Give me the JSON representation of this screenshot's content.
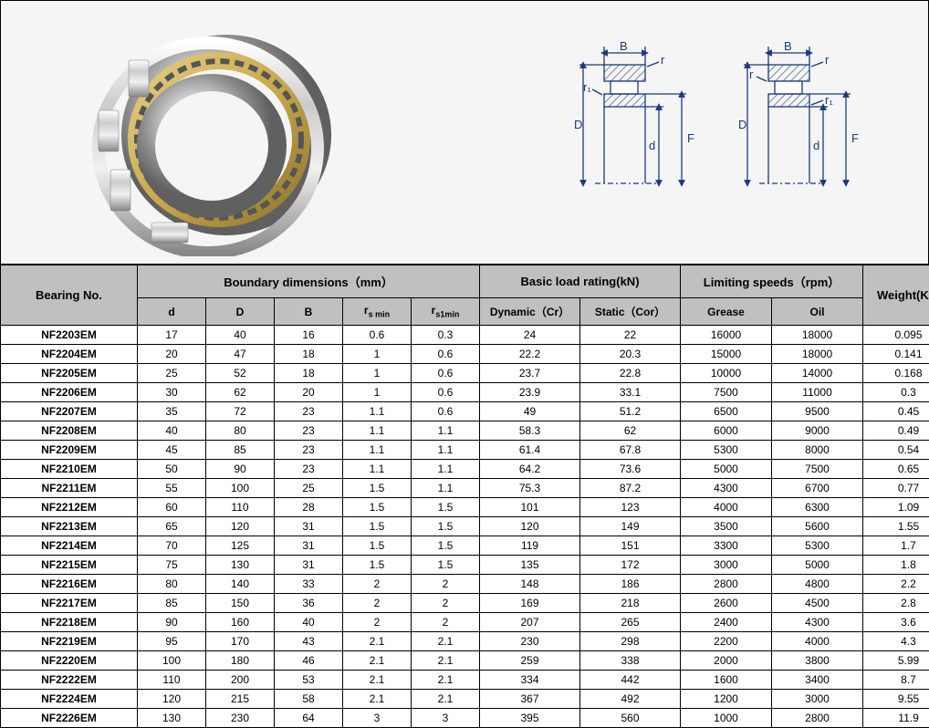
{
  "headers": {
    "bearing_no": "Bearing No.",
    "boundary_dim": "Boundary dimensions（mm）",
    "basic_load": "Basic load rating(kN)",
    "limiting_speeds": "Limiting speeds（rpm）",
    "weight": "Weight(Kg)",
    "d": "d",
    "D_cap": "D",
    "B_cap": "B",
    "rs_min": "r",
    "rs_min_sub": "s min",
    "rs1min": "r",
    "rs1min_sub": "s1min",
    "dynamic": "Dynamic（Cr）",
    "static": "Static（Cor）",
    "grease": "Grease",
    "oil": "Oil"
  },
  "diagram_labels": {
    "B": "B",
    "r": "r",
    "r1": "r₁",
    "D": "D",
    "d": "d",
    "F": "F"
  },
  "table": {
    "columns": [
      "bearing",
      "d",
      "D",
      "B",
      "rs_min",
      "rs1min",
      "dynamic",
      "static",
      "grease",
      "oil",
      "weight"
    ],
    "rows": [
      [
        "NF2203EM",
        "17",
        "40",
        "16",
        "0.6",
        "0.3",
        "24",
        "22",
        "16000",
        "18000",
        "0.095"
      ],
      [
        "NF2204EM",
        "20",
        "47",
        "18",
        "1",
        "0.6",
        "22.2",
        "20.3",
        "15000",
        "18000",
        "0.141"
      ],
      [
        "NF2205EM",
        "25",
        "52",
        "18",
        "1",
        "0.6",
        "23.7",
        "22.8",
        "10000",
        "14000",
        "0.168"
      ],
      [
        "NF2206EM",
        "30",
        "62",
        "20",
        "1",
        "0.6",
        "23.9",
        "33.1",
        "7500",
        "11000",
        "0.3"
      ],
      [
        "NF2207EM",
        "35",
        "72",
        "23",
        "1.1",
        "0.6",
        "49",
        "51.2",
        "6500",
        "9500",
        "0.45"
      ],
      [
        "NF2208EM",
        "40",
        "80",
        "23",
        "1.1",
        "1.1",
        "58.3",
        "62",
        "6000",
        "9000",
        "0.49"
      ],
      [
        "NF2209EM",
        "45",
        "85",
        "23",
        "1.1",
        "1.1",
        "61.4",
        "67.8",
        "5300",
        "8000",
        "0.54"
      ],
      [
        "NF2210EM",
        "50",
        "90",
        "23",
        "1.1",
        "1.1",
        "64.2",
        "73.6",
        "5000",
        "7500",
        "0.65"
      ],
      [
        "NF2211EM",
        "55",
        "100",
        "25",
        "1.5",
        "1.1",
        "75.3",
        "87.2",
        "4300",
        "6700",
        "0.77"
      ],
      [
        "NF2212EM",
        "60",
        "110",
        "28",
        "1.5",
        "1.5",
        "101",
        "123",
        "4000",
        "6300",
        "1.09"
      ],
      [
        "NF2213EM",
        "65",
        "120",
        "31",
        "1.5",
        "1.5",
        "120",
        "149",
        "3500",
        "5600",
        "1.55"
      ],
      [
        "NF2214EM",
        "70",
        "125",
        "31",
        "1.5",
        "1.5",
        "119",
        "151",
        "3300",
        "5300",
        "1.7"
      ],
      [
        "NF2215EM",
        "75",
        "130",
        "31",
        "1.5",
        "1.5",
        "135",
        "172",
        "3000",
        "5000",
        "1.8"
      ],
      [
        "NF2216EM",
        "80",
        "140",
        "33",
        "2",
        "2",
        "148",
        "186",
        "2800",
        "4800",
        "2.2"
      ],
      [
        "NF2217EM",
        "85",
        "150",
        "36",
        "2",
        "2",
        "169",
        "218",
        "2600",
        "4500",
        "2.8"
      ],
      [
        "NF2218EM",
        "90",
        "160",
        "40",
        "2",
        "2",
        "207",
        "265",
        "2400",
        "4300",
        "3.6"
      ],
      [
        "NF2219EM",
        "95",
        "170",
        "43",
        "2.1",
        "2.1",
        "230",
        "298",
        "2200",
        "4000",
        "4.3"
      ],
      [
        "NF2220EM",
        "100",
        "180",
        "46",
        "2.1",
        "2.1",
        "259",
        "338",
        "2000",
        "3800",
        "5.99"
      ],
      [
        "NF2222EM",
        "110",
        "200",
        "53",
        "2.1",
        "2.1",
        "334",
        "442",
        "1600",
        "3400",
        "8.7"
      ],
      [
        "NF2224EM",
        "120",
        "215",
        "58",
        "2.1",
        "2.1",
        "367",
        "492",
        "1200",
        "3000",
        "9.55"
      ],
      [
        "NF2226EM",
        "130",
        "230",
        "64",
        "3",
        "3",
        "395",
        "560",
        "1000",
        "2800",
        "11.9"
      ]
    ]
  },
  "colors": {
    "header_bg": "#c0c0c0",
    "border": "#000000",
    "top_bg": "#f5f5f5",
    "brass": "#c9a94d",
    "steel_light": "#e8e8e8",
    "steel_dark": "#888888"
  }
}
